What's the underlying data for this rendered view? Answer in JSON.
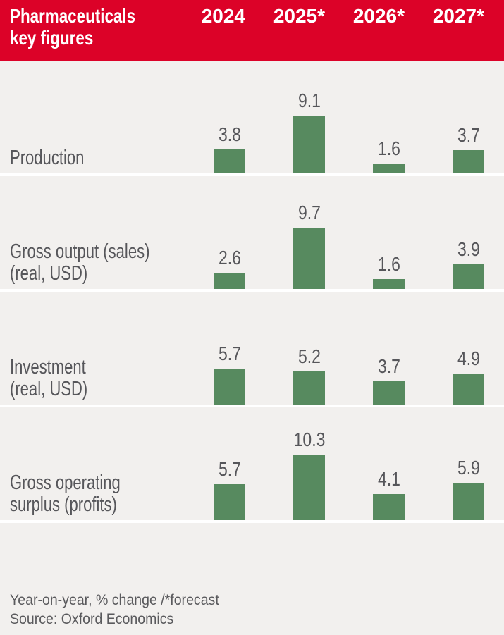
{
  "header": {
    "title_line1": "Pharmaceuticals",
    "title_line2": "key figures",
    "columns": [
      "2024",
      "2025*",
      "2026*",
      "2027*"
    ]
  },
  "chart_data": {
    "type": "bar",
    "title": "Pharmaceuticals key figures",
    "categories": [
      "2024",
      "2025*",
      "2026*",
      "2027*"
    ],
    "value_unit": "Year-on-year % change, * = forecast",
    "legend_position": "none",
    "grid": false,
    "series": [
      {
        "name": "Production",
        "label_lines": [
          "Production"
        ],
        "values": [
          3.8,
          9.1,
          1.6,
          3.7
        ]
      },
      {
        "name": "Gross output (sales) (real, USD)",
        "label_lines": [
          "Gross output (sales)",
          "(real, USD)"
        ],
        "values": [
          2.6,
          9.7,
          1.6,
          3.9
        ]
      },
      {
        "name": "Investment (real, USD)",
        "label_lines": [
          "Investment",
          "(real, USD)"
        ],
        "values": [
          5.7,
          5.2,
          3.7,
          4.9
        ]
      },
      {
        "name": "Gross operating surplus (profits)",
        "label_lines": [
          "Gross operating",
          "surplus (profits)"
        ],
        "values": [
          5.7,
          10.3,
          4.1,
          5.9
        ]
      }
    ]
  },
  "footer": {
    "note": "Year-on-year, % change /*forecast",
    "source": "Source: Oxford Economics"
  },
  "colors": {
    "header_red": "#dc0228",
    "bar_green": "#578a5f",
    "background": "#f2f0ee",
    "divider_white": "#ffffff",
    "text_gray": "#56565a"
  }
}
